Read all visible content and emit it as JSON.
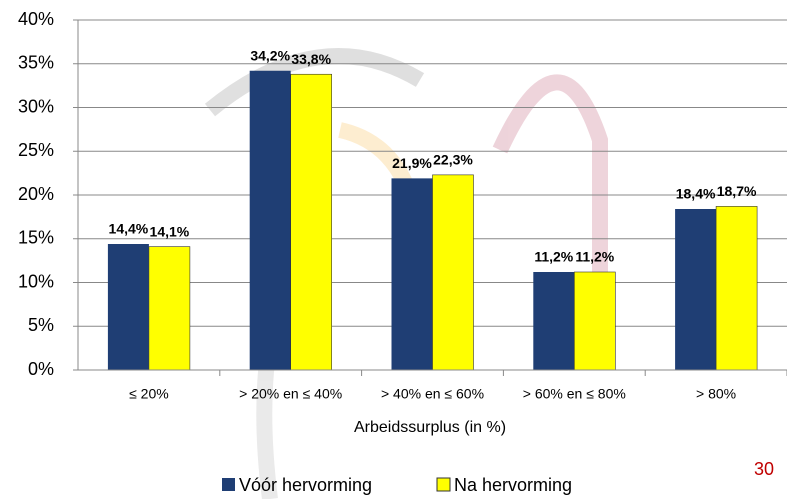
{
  "chart_data": {
    "type": "bar",
    "x_label": "Arbeidssurplus (in %)",
    "categories": [
      "≤ 20%",
      "> 20% en ≤ 40%",
      "> 40% en ≤ 60%",
      "> 60% en ≤ 80%",
      "> 80%"
    ],
    "series": [
      {
        "name": "Vóór hervorming",
        "color": "#1f3e74",
        "values": [
          14.4,
          34.2,
          21.9,
          11.2,
          18.4
        ],
        "value_labels": [
          "14,4%",
          "34,2%",
          "21,9%",
          "11,2%",
          "18,4%"
        ]
      },
      {
        "name": "Na hervorming",
        "color": "#ffff00",
        "values": [
          14.1,
          33.8,
          22.3,
          11.2,
          18.7
        ],
        "value_labels": [
          "14,1%",
          "33,8%",
          "22,3%",
          "11,2%",
          "18,7%"
        ]
      }
    ],
    "ylim": [
      0,
      40
    ],
    "yticks": [
      {
        "value": 0,
        "label": "0%"
      },
      {
        "value": 5,
        "label": "5%"
      },
      {
        "value": 10,
        "label": "10%"
      },
      {
        "value": 15,
        "label": "15%"
      },
      {
        "value": 20,
        "label": "20%"
      },
      {
        "value": 25,
        "label": "25%"
      },
      {
        "value": 30,
        "label": "30%"
      },
      {
        "value": 35,
        "label": "35%"
      },
      {
        "value": 40,
        "label": "40%"
      }
    ],
    "grid": true,
    "legend": "bottom"
  },
  "page_number": "30"
}
